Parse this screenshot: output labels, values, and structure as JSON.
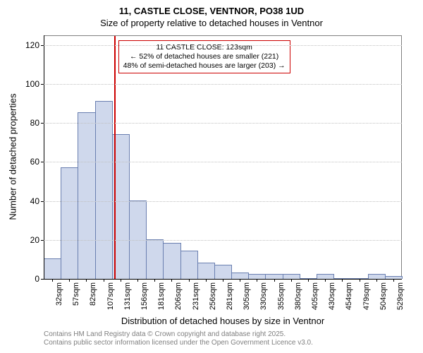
{
  "title_line1": "11, CASTLE CLOSE, VENTNOR, PO38 1UD",
  "title_line2": "Size of property relative to detached houses in Ventnor",
  "ylabel": "Number of detached properties",
  "xlabel": "Distribution of detached houses by size in Ventnor",
  "info_box": {
    "line1": "11 CASTLE CLOSE: 123sqm",
    "line2": "← 52% of detached houses are smaller (221)",
    "line3": "48% of semi-detached houses are larger (203) →"
  },
  "footer_line1": "Contains HM Land Registry data © Crown copyright and database right 2025.",
  "footer_line2": "Contains public sector information licensed under the Open Government Licence v3.0.",
  "chart": {
    "type": "histogram",
    "ylim": [
      0,
      125
    ],
    "yticks": [
      0,
      20,
      40,
      60,
      80,
      100,
      120
    ],
    "bar_fill": "#cfd8ec",
    "bar_stroke": "#6a7fb0",
    "grid_color": "#c0c0c0",
    "background_color": "#ffffff",
    "reference_line_color": "#cc0000",
    "reference_x_value": 123,
    "x_start": 20,
    "x_step": 25,
    "x_unit": "sqm",
    "categories": [
      "32sqm",
      "57sqm",
      "82sqm",
      "107sqm",
      "131sqm",
      "156sqm",
      "181sqm",
      "206sqm",
      "231sqm",
      "256sqm",
      "281sqm",
      "305sqm",
      "330sqm",
      "355sqm",
      "380sqm",
      "405sqm",
      "430sqm",
      "454sqm",
      "479sqm",
      "504sqm",
      "529sqm"
    ],
    "values": [
      10,
      57,
      85,
      91,
      74,
      40,
      20,
      18,
      14,
      8,
      7,
      3,
      2,
      2,
      2,
      0,
      2,
      0,
      0,
      2,
      1
    ],
    "title_fontsize": 13,
    "label_fontsize": 13,
    "tick_fontsize": 12
  }
}
